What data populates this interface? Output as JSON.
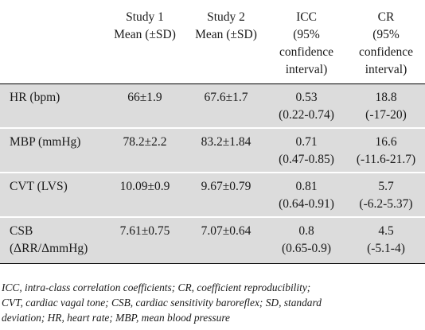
{
  "table": {
    "header": {
      "col1": [
        "Study 1",
        "Mean (±SD)"
      ],
      "col2": [
        "Study 2",
        "Mean (±SD)"
      ],
      "col3": [
        "ICC",
        "(95%",
        "confidence",
        "interval)"
      ],
      "col4": [
        "CR",
        "(95%",
        "confidence",
        "interval)"
      ]
    },
    "rows": [
      {
        "label": [
          "HR (bpm)"
        ],
        "study1": "66±1.9",
        "study2": "67.6±1.7",
        "icc": [
          "0.53",
          "(0.22-0.74)"
        ],
        "cr": [
          "18.8",
          "(-17-20)"
        ]
      },
      {
        "label": [
          "MBP (mmHg)"
        ],
        "study1": "78.2±2.2",
        "study2": "83.2±1.84",
        "icc": [
          "0.71",
          "(0.47-0.85)"
        ],
        "cr": [
          "16.6",
          "(-11.6-21.7)"
        ]
      },
      {
        "label": [
          "CVT (LVS)"
        ],
        "study1": "10.09±0.9",
        "study2": "9.67±0.79",
        "icc": [
          "0.81",
          "(0.64-0.91)"
        ],
        "cr": [
          "5.7",
          "(-6.2-5.37)"
        ]
      },
      {
        "label": [
          "CSB",
          "(ΔRR/ΔmmHg)"
        ],
        "study1": "7.61±0.75",
        "study2": "7.07±0.64",
        "icc": [
          "0.8",
          "(0.65-0.9)"
        ],
        "cr": [
          "4.5",
          "(-5.1-4)"
        ]
      }
    ]
  },
  "footnote": {
    "lines": [
      "ICC, intra-class correlation coefficients; CR, coefficient reproducibility;",
      "CVT, cardiac vagal tone; CSB, cardiac sensitivity baroreflex; SD, standard",
      "deviation; HR, heart rate; MBP, mean blood pressure"
    ]
  }
}
